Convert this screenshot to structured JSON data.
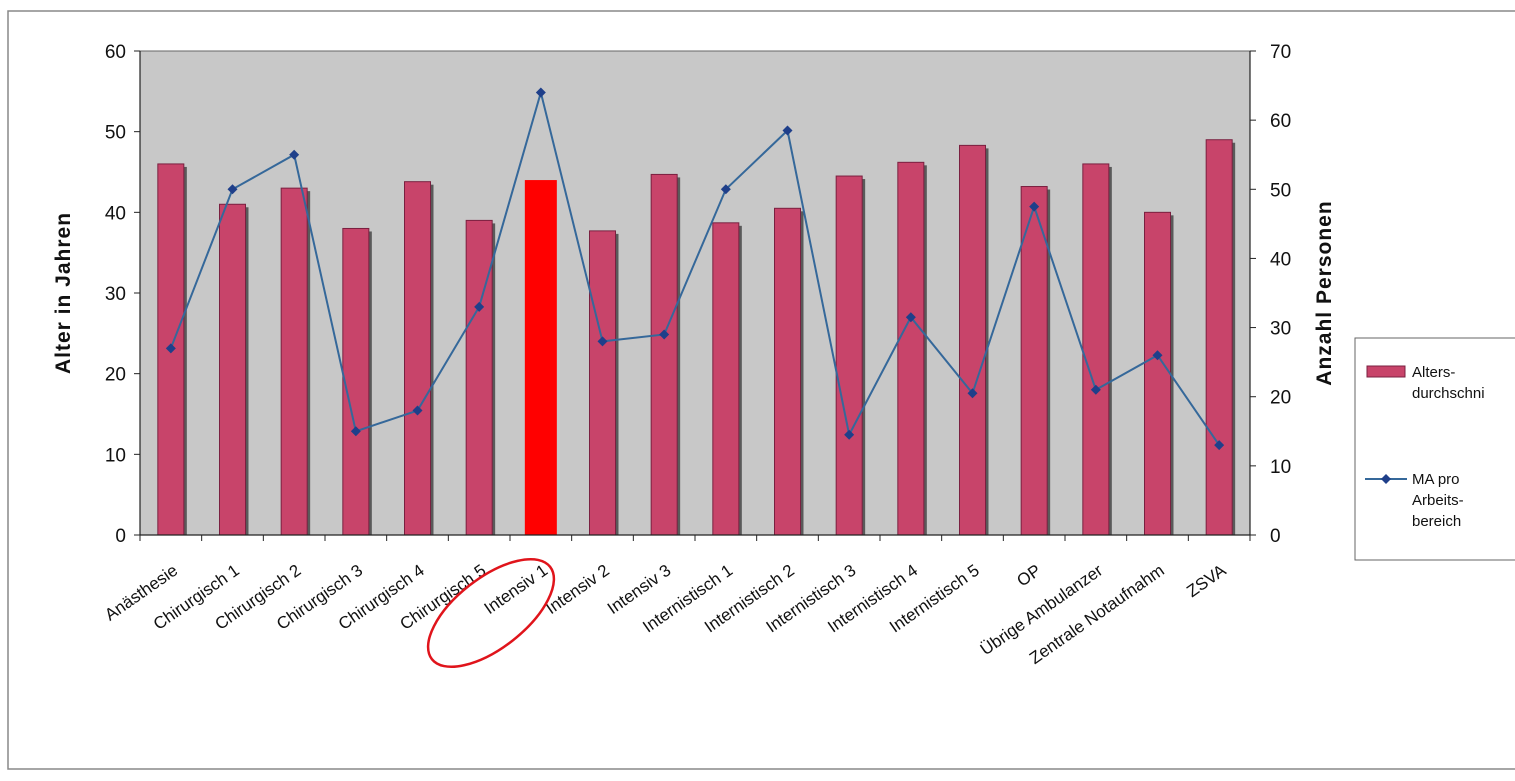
{
  "chart_data": {
    "type": "bar",
    "xlabel": "",
    "categories": [
      "Anästhesie",
      "Chirurgisch 1",
      "Chirurgisch 2",
      "Chirurgisch 3",
      "Chirurgisch 4",
      "Chirurgisch 5",
      "Intensiv 1",
      "Intensiv 2",
      "Intensiv 3",
      "Internistisch 1",
      "Internistisch 2",
      "Internistisch 3",
      "Internistisch 4",
      "Internistisch 5",
      "OP",
      "Übrige Ambulanzer",
      "Zentrale Notaufnahm",
      "ZSVA"
    ],
    "series": [
      {
        "name": "Alters-\ndurchschni",
        "type": "bar",
        "axis": "left",
        "values": [
          46,
          41,
          43,
          38,
          43.8,
          39,
          44,
          37.7,
          44.7,
          38.7,
          40.5,
          44.5,
          46.2,
          48.3,
          43.2,
          46,
          40,
          49
        ]
      },
      {
        "name": "MA pro\nArbeits-\nbereich",
        "type": "line",
        "axis": "right",
        "values": [
          27,
          50,
          55,
          15,
          18,
          33,
          64,
          28,
          29,
          50,
          58.5,
          14.5,
          31.5,
          20.5,
          47.5,
          21,
          26,
          13
        ]
      }
    ],
    "ylabel": "Alter in Jahren",
    "ylim": [
      0,
      60
    ],
    "yticks": [
      "0",
      "10",
      "20",
      "30",
      "40",
      "50",
      "60"
    ],
    "y2label": "Anzahl Personen",
    "y2lim": [
      0,
      70
    ],
    "y2ticks": [
      "0",
      "10",
      "20",
      "30",
      "40",
      "50",
      "60",
      "70"
    ],
    "highlighted_category": "Intensiv 1",
    "grid": false,
    "legend_position": "right",
    "colors": {
      "bar": "#c8446a",
      "bar_highlight": "#ff0000",
      "line": "#35689a",
      "marker": "#1f3f8a",
      "plot_area": "#c8c8c8",
      "annotation": "#e0141b"
    }
  }
}
